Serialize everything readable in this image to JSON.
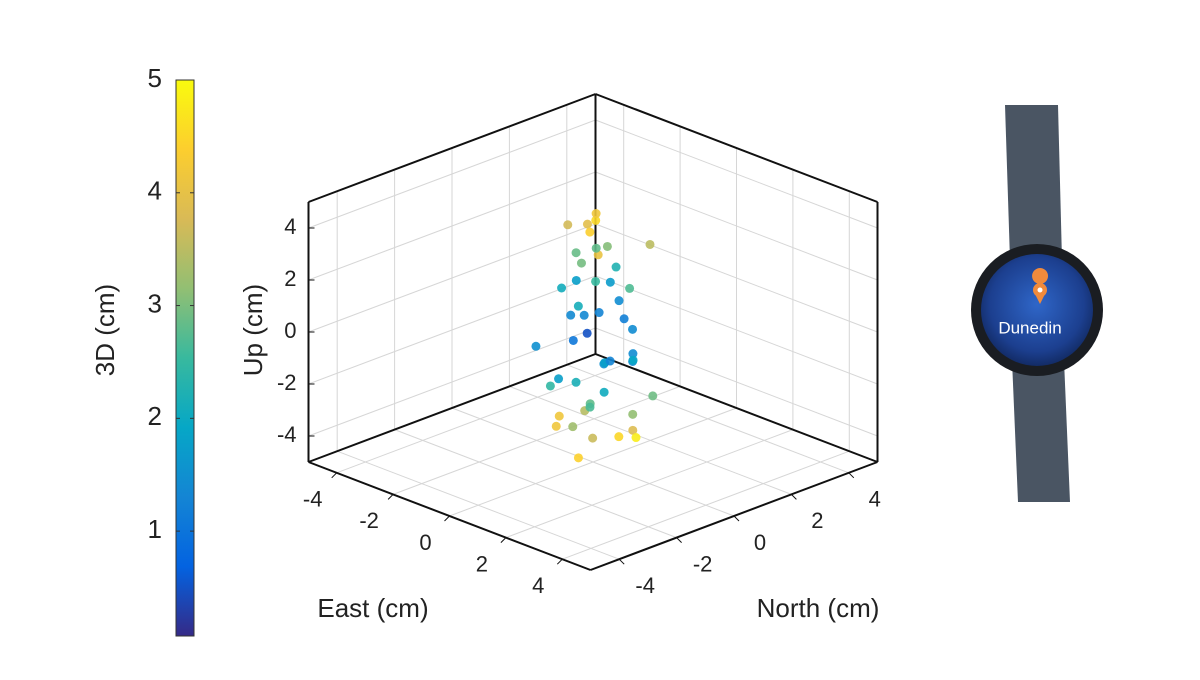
{
  "chart_data": {
    "type": "scatter3d",
    "xlabel": "East (cm)",
    "ylabel": "North (cm)",
    "zlabel": "Up (cm)",
    "xlim": [
      -5,
      5
    ],
    "ylim": [
      -5,
      5
    ],
    "zlim": [
      -5,
      5
    ],
    "xticks": [
      -4,
      -2,
      0,
      2,
      4
    ],
    "yticks": [
      -4,
      -2,
      0,
      2,
      4
    ],
    "zticks": [
      -4,
      -2,
      0,
      2,
      4
    ],
    "grid": true,
    "colormap": [
      "#352a87",
      "#0363e1",
      "#1485d4",
      "#06a7c6",
      "#38b99e",
      "#92bf73",
      "#d9ba56",
      "#fcce2e",
      "#f9fb0e"
    ],
    "colorbar": {
      "label": "3D (cm)",
      "clim": [
        0.07,
        5
      ],
      "ticks": [
        1,
        2,
        3,
        4,
        5
      ]
    },
    "east": [
      0.3,
      -0.5,
      1.1,
      -1.2,
      0.8,
      0.1,
      -0.7,
      1.4,
      -0.2,
      0.6,
      -1.0,
      0.4,
      0.9,
      -0.4,
      0.2,
      -1.3,
      1.2,
      -0.8,
      0.5,
      0.0,
      -0.3,
      0.7,
      -0.9,
      1.0,
      -0.1,
      0.3,
      -0.6,
      0.8,
      -1.1,
      0.4,
      0.1,
      -0.4,
      0.6,
      -0.2,
      1.3,
      -0.7,
      0.2,
      -0.5,
      0.9,
      -1.4,
      0.5,
      0.0,
      -0.3,
      1.1,
      -0.8,
      0.3,
      -0.1,
      0.7,
      -0.6,
      0.2
    ],
    "north": [
      -0.2,
      0.6,
      -0.9,
      0.3,
      1.2,
      -0.5,
      0.8,
      -0.1,
      1.0,
      -1.1,
      0.4,
      -0.7,
      0.2,
      1.3,
      -0.4,
      0.5,
      -0.8,
      0.1,
      0.9,
      -1.2,
      0.7,
      -0.3,
      -0.6,
      1.1,
      0.0,
      -1.0,
      0.3,
      0.6,
      -0.2,
      -0.9,
      1.4,
      0.2,
      -0.5,
      0.8,
      0.1,
      -1.3,
      0.4,
      -0.1,
      0.5,
      0.2,
      -0.6,
      0.9,
      -0.8,
      0.3,
      1.0,
      -0.4,
      0.6,
      -0.7,
      0.0,
      1.2
    ],
    "up": [
      4.5,
      4.1,
      3.8,
      3.5,
      3.2,
      2.9,
      2.6,
      2.3,
      2.0,
      1.7,
      1.4,
      1.1,
      0.8,
      0.5,
      0.2,
      -0.1,
      -0.4,
      -0.7,
      -1.0,
      -1.3,
      -1.6,
      -1.9,
      -2.2,
      -2.5,
      -2.8,
      -3.1,
      -3.4,
      -3.7,
      -4.0,
      -4.3,
      -4.6,
      3.9,
      2.4,
      1.5,
      0.6,
      -0.3,
      -1.2,
      -2.1,
      -3.0,
      -3.9,
      4.3,
      -4.4,
      1.9,
      -0.8,
      0.0,
      -2.6,
      3.0,
      -3.5,
      2.8,
      -1.5
    ]
  },
  "watch": {
    "city": "Dunedin"
  }
}
